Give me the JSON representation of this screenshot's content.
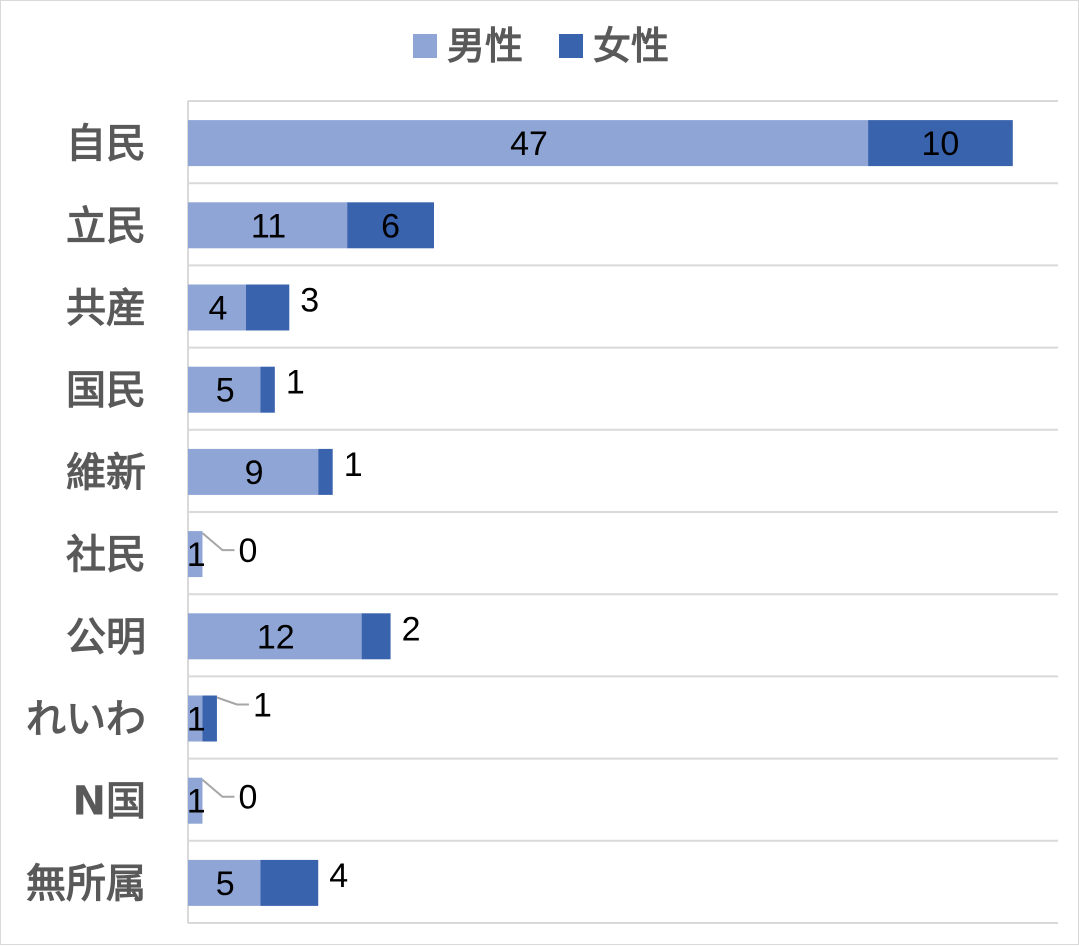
{
  "chart_data": {
    "type": "bar",
    "orientation": "horizontal",
    "stacked": true,
    "categories": [
      "自民",
      "立民",
      "共産",
      "国民",
      "維新",
      "社民",
      "公明",
      "れいわ",
      "N国",
      "無所属"
    ],
    "series": [
      {
        "name": "男性",
        "values": [
          47,
          11,
          4,
          5,
          9,
          1,
          12,
          1,
          1,
          5
        ],
        "color": "#8EA5D6"
      },
      {
        "name": "女性",
        "values": [
          10,
          6,
          3,
          1,
          1,
          0,
          2,
          1,
          0,
          4
        ],
        "color": "#3A63AE"
      }
    ],
    "title": "",
    "xlabel": "",
    "ylabel": "",
    "xlim": [
      0,
      60
    ],
    "grid": "horizontal",
    "legend_position": "top",
    "data_labels": true
  }
}
